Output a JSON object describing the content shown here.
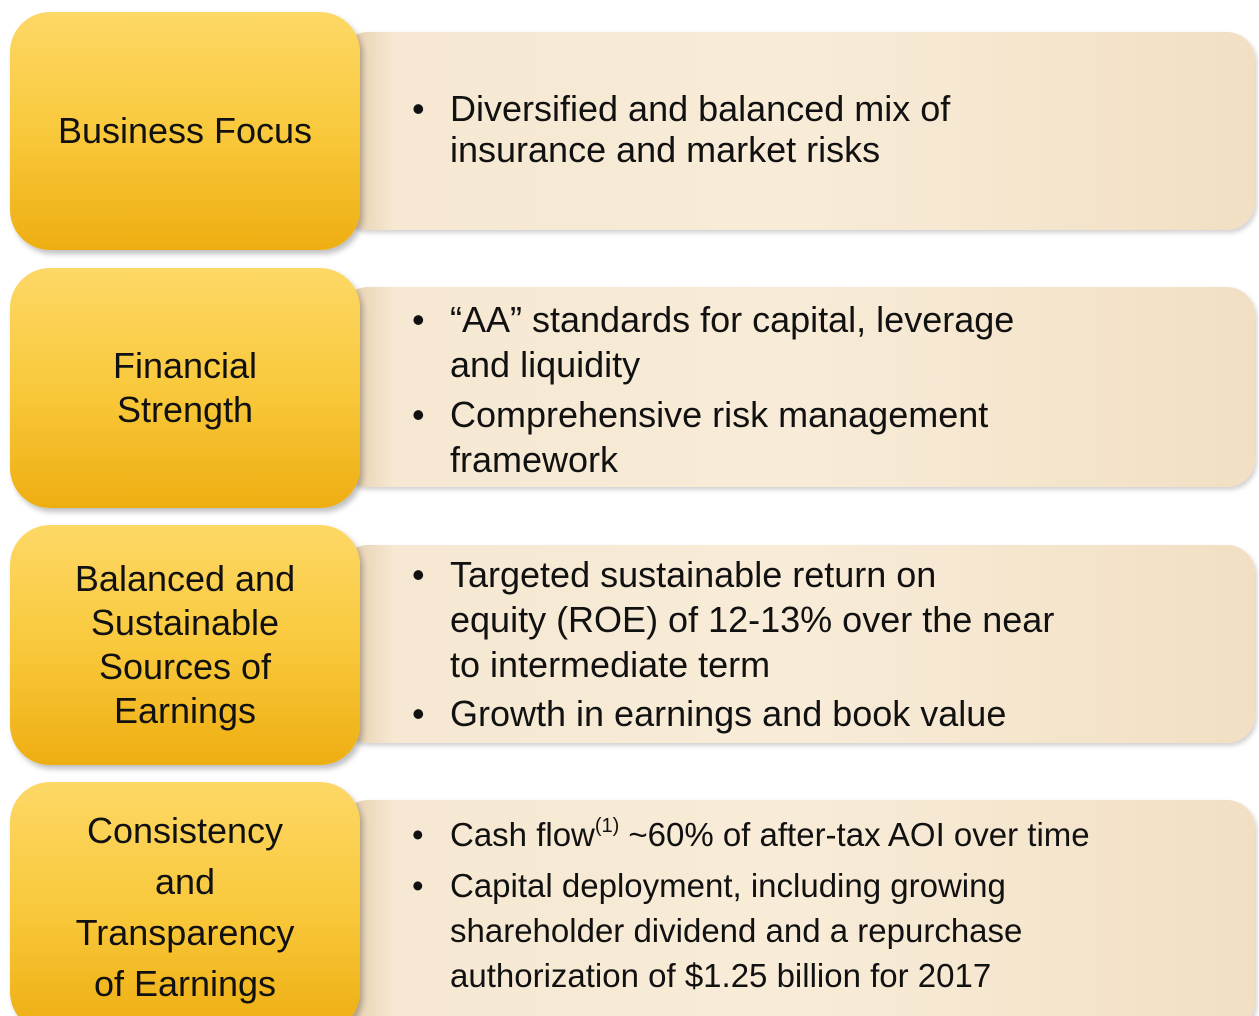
{
  "rows": [
    {
      "label": [
        "Business Focus"
      ],
      "bullets": [
        [
          "Diversified and balanced mix of",
          "insurance and market risks"
        ]
      ]
    },
    {
      "label": [
        "Financial",
        "Strength"
      ],
      "bullets": [
        [
          "“AA” standards for capital, leverage",
          "and liquidity"
        ],
        [
          "Comprehensive risk management",
          "framework"
        ]
      ]
    },
    {
      "label": [
        "Balanced and",
        "Sustainable",
        "Sources of",
        "Earnings"
      ],
      "bullets": [
        [
          "Targeted sustainable return on",
          "equity (ROE) of 12-13% over the near",
          "to intermediate term"
        ],
        [
          "Growth in earnings and book value"
        ]
      ]
    },
    {
      "label": [
        "Consistency",
        "and",
        "Transparency",
        "of Earnings"
      ],
      "bullets": [
        [
          {
            "text": "Cash flow",
            "sup": "(1)",
            "after": "~60% of after-tax AOI over time"
          }
        ],
        [
          "Capital deployment, including growing",
          "shareholder dividend and a repurchase",
          "authorization of $1.25 billion for 2017"
        ]
      ]
    }
  ]
}
